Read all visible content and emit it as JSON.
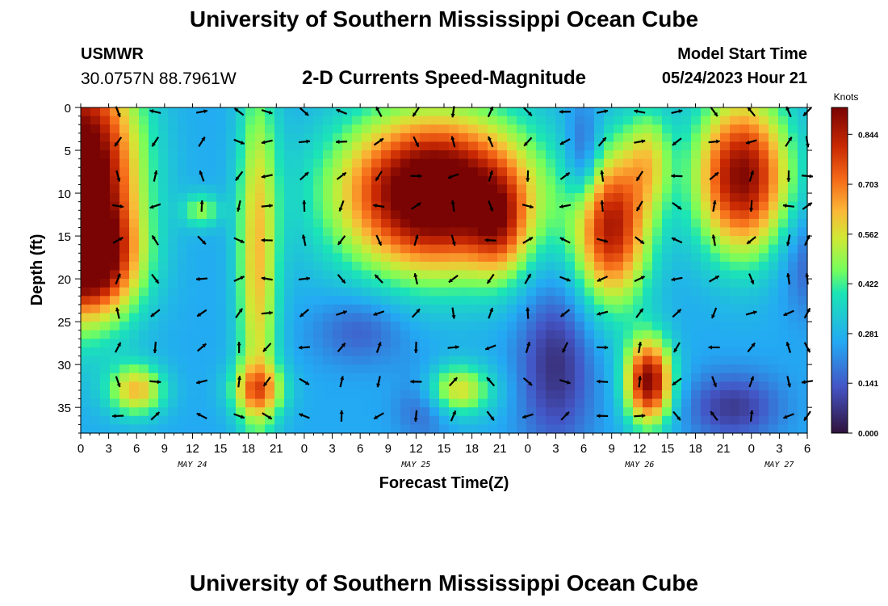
{
  "header": {
    "title": "University of Southern Mississippi Ocean Cube",
    "station": "USMWR",
    "coords": "30.0757N  88.7961W",
    "subtitle": "2-D Currents Speed-Magnitude",
    "model_label": "Model Start Time",
    "model_time": "05/24/2023 Hour 21"
  },
  "footer": {
    "title": "University of Southern Mississippi Ocean Cube"
  },
  "chart_data": {
    "type": "heatmap",
    "title": "2-D Currents Speed-Magnitude",
    "xlabel": "Forecast Time(Z)",
    "ylabel": "Depth (ft)",
    "x_range_hours": [
      0,
      78
    ],
    "y_range_ft": [
      0,
      38
    ],
    "x_tick_labels": [
      "0",
      "3",
      "6",
      "9",
      "12",
      "15",
      "18",
      "21",
      "0",
      "3",
      "6",
      "9",
      "12",
      "15",
      "18",
      "21",
      "0",
      "3",
      "6",
      "9",
      "12",
      "15",
      "18",
      "21",
      "0",
      "3",
      "6"
    ],
    "y_ticks": [
      0,
      5,
      10,
      15,
      20,
      25,
      30,
      35
    ],
    "date_labels": [
      {
        "text": "MAY 24",
        "hour": 12
      },
      {
        "text": "MAY 25",
        "hour": 36
      },
      {
        "text": "MAY 26",
        "hour": 60
      },
      {
        "text": "MAY 27",
        "hour": 75
      }
    ],
    "colorbar": {
      "unit": "Knots",
      "ticks": [
        "0.844",
        "0.703",
        "0.562",
        "0.422",
        "0.281",
        "0.141",
        "0.000"
      ],
      "min": 0.0,
      "max": 0.92
    },
    "speed_features": [
      {
        "hour": 0,
        "depth": 8,
        "sx": 6,
        "sy": 14,
        "value": 0.8
      },
      {
        "hour": 1,
        "depth": 18,
        "sx": 5,
        "sy": 6,
        "value": 0.45
      },
      {
        "hour": 19,
        "depth": 18,
        "sx": 2.2,
        "sy": 22,
        "value": 0.35
      },
      {
        "hour": 13,
        "depth": 12,
        "sx": 2,
        "sy": 2,
        "value": 0.22
      },
      {
        "hour": 6,
        "depth": 33,
        "sx": 3,
        "sy": 3,
        "value": 0.35
      },
      {
        "hour": 19,
        "depth": 33,
        "sx": 3,
        "sy": 3,
        "value": 0.3
      },
      {
        "hour": 38,
        "depth": 10,
        "sx": 10,
        "sy": 9,
        "value": 0.82
      },
      {
        "hour": 45,
        "depth": 14,
        "sx": 3,
        "sy": 6,
        "value": 0.25
      },
      {
        "hour": 40,
        "depth": 33,
        "sx": 4,
        "sy": 3,
        "value": 0.35
      },
      {
        "hour": 57,
        "depth": 14,
        "sx": 4,
        "sy": 9,
        "value": 0.58
      },
      {
        "hour": 61,
        "depth": 32,
        "sx": 2.5,
        "sy": 5,
        "value": 0.65
      },
      {
        "hour": 71,
        "depth": 8,
        "sx": 5,
        "sy": 9,
        "value": 0.65
      },
      {
        "hour": 51,
        "depth": 30,
        "sx": 4,
        "sy": 10,
        "value": -0.2
      },
      {
        "hour": 54,
        "depth": 6,
        "sx": 2,
        "sy": 6,
        "value": -0.22
      },
      {
        "hour": 61,
        "depth": 6,
        "sx": 2.5,
        "sy": 6,
        "value": 0.25
      },
      {
        "hour": 70,
        "depth": 35,
        "sx": 5,
        "sy": 4,
        "value": -0.18
      },
      {
        "hour": 37,
        "depth": 34,
        "sx": 3,
        "sy": 4,
        "value": -0.18
      },
      {
        "hour": 78,
        "depth": 18,
        "sx": 3,
        "sy": 6,
        "value": -0.12
      },
      {
        "hour": 30,
        "depth": 26,
        "sx": 5,
        "sy": 4,
        "value": -0.12
      }
    ],
    "speed_base": 0.26,
    "arrow_times": [
      4,
      8,
      13,
      17,
      20,
      24,
      28,
      32,
      36,
      40,
      44,
      48,
      52,
      56,
      60,
      64,
      68,
      72,
      76,
      78
    ],
    "arrow_depths": [
      0.5,
      4,
      8,
      11.5,
      15.5,
      20,
      24,
      28,
      32,
      36
    ]
  }
}
